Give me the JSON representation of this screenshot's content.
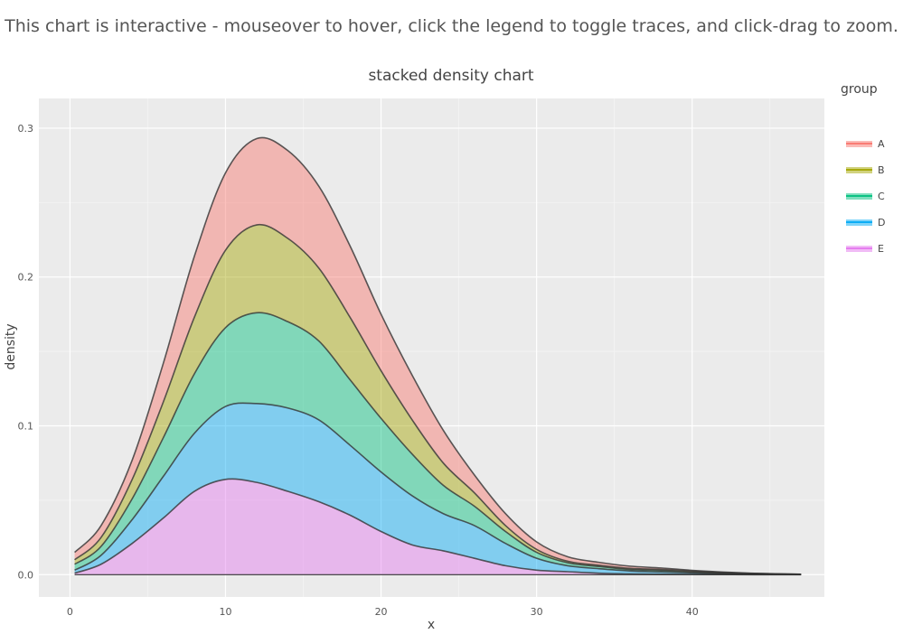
{
  "page": {
    "banner": "This chart is interactive - mouseover to hover, click the legend to toggle traces, and click-drag to zoom."
  },
  "chart_data": {
    "type": "area",
    "stacked": true,
    "title": "stacked density chart",
    "xlabel": "x",
    "ylabel": "density",
    "legend_title": "group",
    "legend_placement": "right",
    "xlim": [
      -2,
      48.5
    ],
    "ylim": [
      -0.015,
      0.32
    ],
    "xticks": [
      0,
      10,
      20,
      30,
      40
    ],
    "yticks": [
      0.0,
      0.1,
      0.2,
      0.3
    ],
    "ytick_labels": [
      "0.0",
      "0.1",
      "0.2",
      "0.3"
    ],
    "grid": true,
    "x": [
      0.3,
      2,
      4,
      6,
      8,
      10,
      12,
      14,
      16,
      18,
      20,
      22,
      24,
      26,
      28,
      30,
      32,
      34,
      36,
      38,
      40,
      42,
      44,
      47
    ],
    "series": [
      {
        "name": "E",
        "color": "#E377EE",
        "values": [
          0.001,
          0.007,
          0.021,
          0.038,
          0.056,
          0.064,
          0.062,
          0.056,
          0.049,
          0.04,
          0.029,
          0.02,
          0.016,
          0.011,
          0.006,
          0.003,
          0.002,
          0.001,
          0.0005,
          0.0003,
          0.0002,
          0.0001,
          0.0,
          0.0
        ]
      },
      {
        "name": "D",
        "color": "#00A9F4",
        "values": [
          0.002,
          0.006,
          0.016,
          0.028,
          0.039,
          0.049,
          0.053,
          0.056,
          0.055,
          0.047,
          0.04,
          0.033,
          0.025,
          0.022,
          0.015,
          0.008,
          0.004,
          0.003,
          0.002,
          0.0015,
          0.001,
          0.0005,
          0.0003,
          0.0001
        ]
      },
      {
        "name": "C",
        "color": "#00BF7D",
        "values": [
          0.004,
          0.006,
          0.014,
          0.026,
          0.04,
          0.053,
          0.061,
          0.058,
          0.053,
          0.044,
          0.036,
          0.028,
          0.019,
          0.013,
          0.008,
          0.004,
          0.002,
          0.0015,
          0.001,
          0.001,
          0.0005,
          0.0003,
          0.0002,
          0.0001
        ]
      },
      {
        "name": "B",
        "color": "#A3A500",
        "values": [
          0.003,
          0.006,
          0.013,
          0.024,
          0.038,
          0.052,
          0.059,
          0.056,
          0.049,
          0.042,
          0.032,
          0.023,
          0.015,
          0.009,
          0.004,
          0.002,
          0.001,
          0.0008,
          0.0007,
          0.0007,
          0.0007,
          0.0005,
          0.0003,
          0.0001
        ]
      },
      {
        "name": "A",
        "color": "#F8766D",
        "values": [
          0.005,
          0.008,
          0.013,
          0.026,
          0.041,
          0.052,
          0.058,
          0.059,
          0.055,
          0.048,
          0.038,
          0.03,
          0.022,
          0.012,
          0.008,
          0.005,
          0.003,
          0.002,
          0.0015,
          0.001,
          0.0005,
          0.0003,
          0.0001,
          0.0
        ]
      }
    ]
  }
}
